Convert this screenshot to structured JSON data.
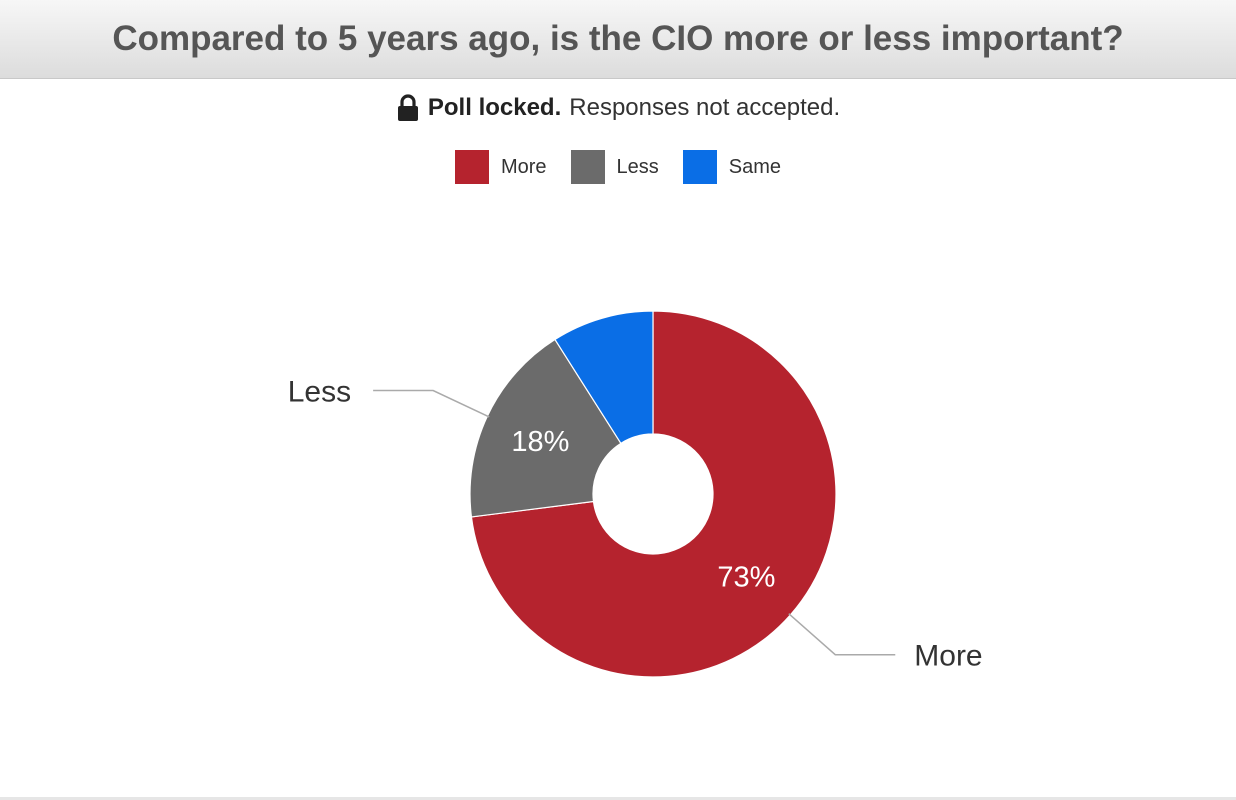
{
  "header": {
    "title": "Compared to 5 years ago, is the CIO more or less important?"
  },
  "status": {
    "lock_label": "Poll locked.",
    "message": "Responses not accepted.",
    "icon": "lock-icon"
  },
  "chart_data": {
    "type": "pie",
    "donut": true,
    "title": "Compared to 5 years ago, is the CIO more or less important?",
    "legend_position": "top-center",
    "slices": [
      {
        "label": "More",
        "value": 73,
        "color": "#b5232e",
        "pct_label": "73%",
        "callout": "More"
      },
      {
        "label": "Less",
        "value": 18,
        "color": "#6b6b6b",
        "pct_label": "18%",
        "callout": "Less"
      },
      {
        "label": "Same",
        "value": 9,
        "color": "#0a6ee6",
        "pct_label": "",
        "callout": ""
      }
    ]
  }
}
